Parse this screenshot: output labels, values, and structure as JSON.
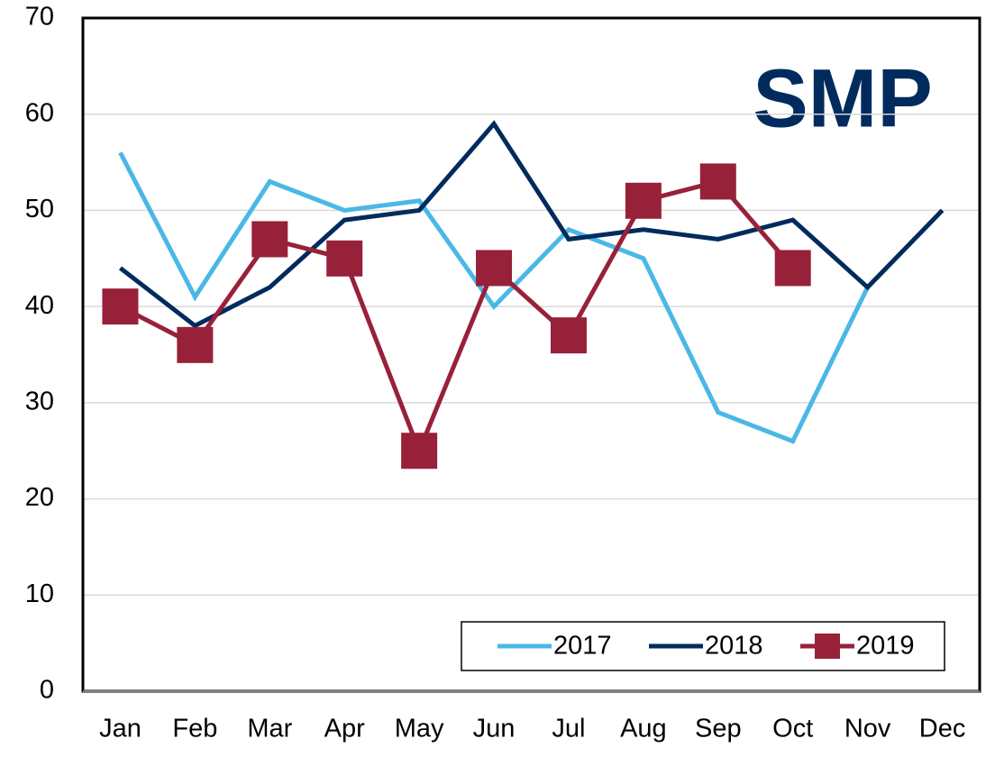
{
  "chart_data": {
    "type": "line",
    "title": "SMP",
    "categories": [
      "Jan",
      "Feb",
      "Mar",
      "Apr",
      "May",
      "Jun",
      "Jul",
      "Aug",
      "Sep",
      "Oct",
      "Nov",
      "Dec"
    ],
    "series": [
      {
        "name": "2017",
        "color": "#4ab8e6",
        "marker": "none",
        "values": [
          56,
          41,
          53,
          50,
          51,
          40,
          48,
          45,
          29,
          26,
          42,
          null
        ]
      },
      {
        "name": "2018",
        "color": "#002b5c",
        "marker": "none",
        "values": [
          44,
          38,
          42,
          49,
          50,
          59,
          47,
          48,
          47,
          49,
          42,
          50
        ]
      },
      {
        "name": "2019",
        "color": "#98213a",
        "marker": "square",
        "values": [
          40,
          36,
          47,
          45,
          25,
          44,
          37,
          51,
          53,
          44,
          null,
          null
        ]
      }
    ],
    "ylim": [
      0,
      70
    ],
    "yticks": [
      0,
      10,
      20,
      30,
      40,
      50,
      60,
      70
    ],
    "grid": true,
    "legend": "lower right"
  }
}
